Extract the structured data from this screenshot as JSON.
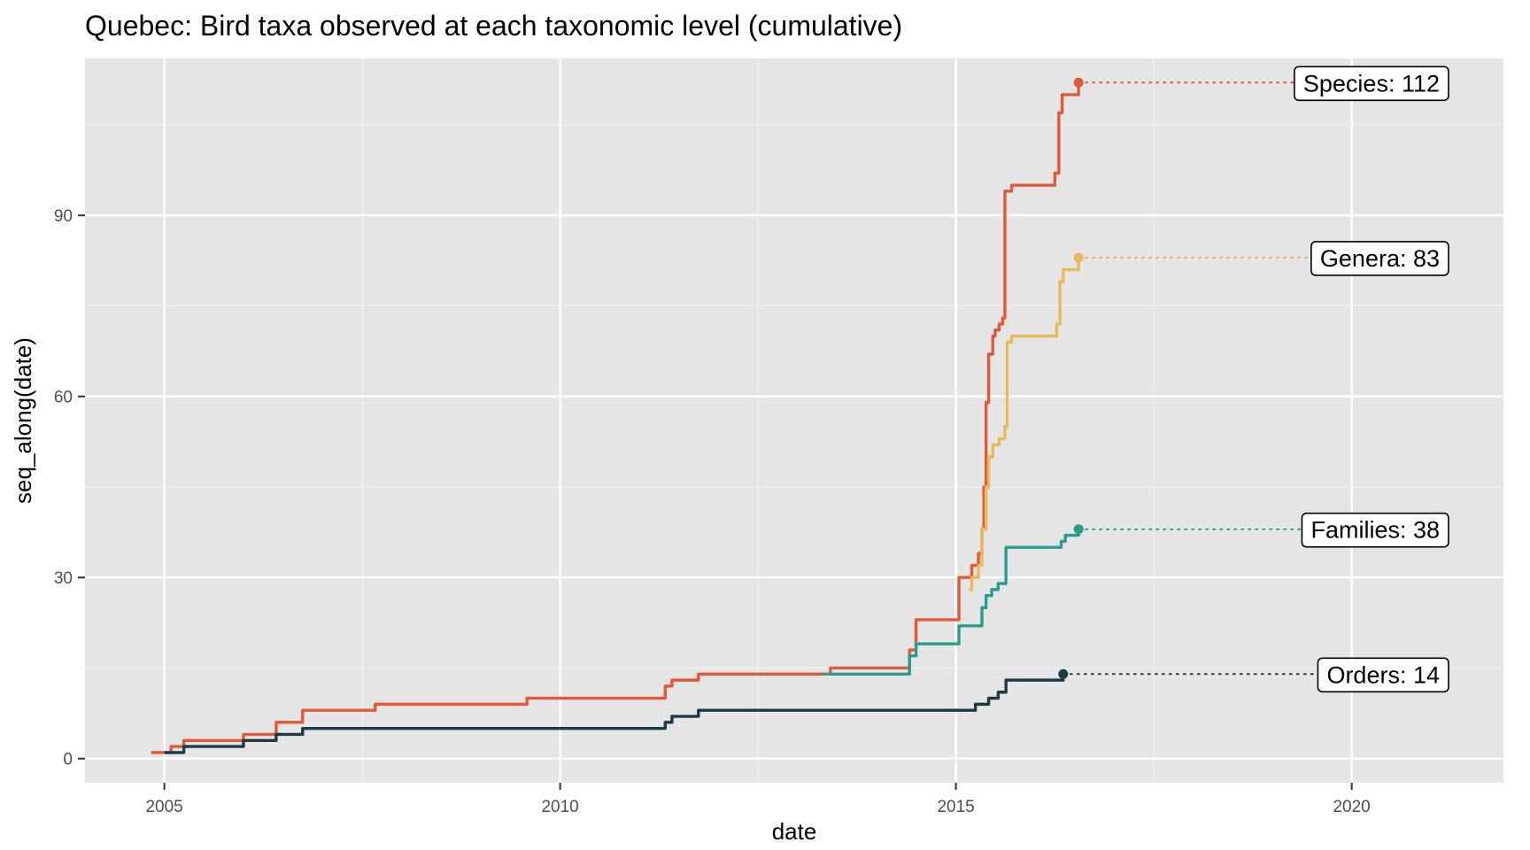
{
  "chart_data": {
    "type": "line",
    "title": "Quebec: Bird taxa observed at each taxonomic level (cumulative)",
    "xlabel": "date",
    "ylabel": "seq_along(date)",
    "x_scale": "date",
    "xlim": [
      "2004-01-01",
      "2021-12-01"
    ],
    "ylim": [
      -4,
      116
    ],
    "x_ticks": [
      "2005",
      "2010",
      "2015",
      "2020"
    ],
    "y_ticks": [
      "0",
      "30",
      "60",
      "90"
    ],
    "grid": true,
    "legend": "none",
    "panel_color": "#e5e5e5",
    "series": [
      {
        "name": "Species",
        "label": "Species: 112",
        "color": "#e05a3a",
        "points": [
          [
            "2004-11-01",
            1
          ],
          [
            "2005-02-01",
            1
          ],
          [
            "2005-02-01",
            2
          ],
          [
            "2005-04-01",
            2
          ],
          [
            "2005-04-01",
            3
          ],
          [
            "2006-01-01",
            3
          ],
          [
            "2006-01-01",
            4
          ],
          [
            "2006-06-01",
            4
          ],
          [
            "2006-06-01",
            6
          ],
          [
            "2006-10-01",
            6
          ],
          [
            "2006-10-01",
            8
          ],
          [
            "2007-09-01",
            8
          ],
          [
            "2007-09-01",
            9
          ],
          [
            "2009-08-01",
            9
          ],
          [
            "2009-08-01",
            10
          ],
          [
            "2011-05-01",
            10
          ],
          [
            "2011-05-01",
            12
          ],
          [
            "2011-06-01",
            12
          ],
          [
            "2011-06-01",
            13
          ],
          [
            "2011-10-01",
            13
          ],
          [
            "2011-10-01",
            14
          ],
          [
            "2013-06-01",
            14
          ],
          [
            "2013-06-01",
            15
          ],
          [
            "2014-06-01",
            15
          ],
          [
            "2014-06-01",
            18
          ],
          [
            "2014-07-01",
            18
          ],
          [
            "2014-07-01",
            23
          ],
          [
            "2015-01-15",
            23
          ],
          [
            "2015-01-15",
            30
          ],
          [
            "2015-03-15",
            30
          ],
          [
            "2015-03-15",
            32
          ],
          [
            "2015-04-15",
            32
          ],
          [
            "2015-04-15",
            34
          ],
          [
            "2015-05-01",
            34
          ],
          [
            "2015-05-01",
            38
          ],
          [
            "2015-05-10",
            38
          ],
          [
            "2015-05-10",
            45
          ],
          [
            "2015-05-20",
            45
          ],
          [
            "2015-05-20",
            59
          ],
          [
            "2015-06-01",
            59
          ],
          [
            "2015-06-01",
            67
          ],
          [
            "2015-06-20",
            67
          ],
          [
            "2015-06-20",
            70
          ],
          [
            "2015-07-01",
            70
          ],
          [
            "2015-07-01",
            71
          ],
          [
            "2015-07-20",
            71
          ],
          [
            "2015-07-20",
            72
          ],
          [
            "2015-08-05",
            72
          ],
          [
            "2015-08-05",
            73
          ],
          [
            "2015-08-15",
            73
          ],
          [
            "2015-08-15",
            94
          ],
          [
            "2015-09-15",
            94
          ],
          [
            "2015-09-15",
            95
          ],
          [
            "2016-04-01",
            95
          ],
          [
            "2016-04-01",
            97
          ],
          [
            "2016-04-20",
            97
          ],
          [
            "2016-04-20",
            107
          ],
          [
            "2016-05-05",
            107
          ],
          [
            "2016-05-05",
            110
          ],
          [
            "2016-07-20",
            110
          ],
          [
            "2016-07-20",
            112
          ]
        ]
      },
      {
        "name": "Genera",
        "label": "Genera: 83",
        "color": "#e8b95a",
        "points": [
          [
            "2015-03-01",
            28
          ],
          [
            "2015-03-15",
            28
          ],
          [
            "2015-03-15",
            30
          ],
          [
            "2015-04-15",
            30
          ],
          [
            "2015-04-15",
            32
          ],
          [
            "2015-05-01",
            32
          ],
          [
            "2015-05-01",
            38
          ],
          [
            "2015-05-20",
            38
          ],
          [
            "2015-05-20",
            45
          ],
          [
            "2015-06-01",
            45
          ],
          [
            "2015-06-01",
            50
          ],
          [
            "2015-06-20",
            50
          ],
          [
            "2015-06-20",
            52
          ],
          [
            "2015-07-20",
            52
          ],
          [
            "2015-07-20",
            53
          ],
          [
            "2015-08-15",
            53
          ],
          [
            "2015-08-15",
            55
          ],
          [
            "2015-08-25",
            55
          ],
          [
            "2015-08-25",
            69
          ],
          [
            "2015-09-15",
            69
          ],
          [
            "2015-09-15",
            70
          ],
          [
            "2016-04-10",
            70
          ],
          [
            "2016-04-10",
            72
          ],
          [
            "2016-04-25",
            72
          ],
          [
            "2016-04-25",
            79
          ],
          [
            "2016-05-10",
            79
          ],
          [
            "2016-05-10",
            81
          ],
          [
            "2016-07-20",
            81
          ],
          [
            "2016-07-20",
            83
          ]
        ]
      },
      {
        "name": "Families",
        "label": "Families: 38",
        "color": "#2a9d8f",
        "points": [
          [
            "2013-05-01",
            14
          ],
          [
            "2014-06-01",
            14
          ],
          [
            "2014-06-01",
            17
          ],
          [
            "2014-07-01",
            17
          ],
          [
            "2014-07-01",
            19
          ],
          [
            "2015-01-15",
            19
          ],
          [
            "2015-01-15",
            22
          ],
          [
            "2015-05-01",
            22
          ],
          [
            "2015-05-01",
            25
          ],
          [
            "2015-05-20",
            25
          ],
          [
            "2015-05-20",
            27
          ],
          [
            "2015-06-15",
            27
          ],
          [
            "2015-06-15",
            28
          ],
          [
            "2015-07-15",
            28
          ],
          [
            "2015-07-15",
            29
          ],
          [
            "2015-08-20",
            29
          ],
          [
            "2015-08-20",
            35
          ],
          [
            "2016-05-01",
            35
          ],
          [
            "2016-05-01",
            36
          ],
          [
            "2016-05-20",
            36
          ],
          [
            "2016-05-20",
            37
          ],
          [
            "2016-07-20",
            37
          ],
          [
            "2016-07-20",
            38
          ]
        ]
      },
      {
        "name": "Orders",
        "label": "Orders: 14",
        "color": "#1d3a47",
        "points": [
          [
            "2005-01-01",
            1
          ],
          [
            "2005-04-01",
            1
          ],
          [
            "2005-04-01",
            2
          ],
          [
            "2006-01-01",
            2
          ],
          [
            "2006-01-01",
            3
          ],
          [
            "2006-06-01",
            3
          ],
          [
            "2006-06-01",
            4
          ],
          [
            "2006-10-01",
            4
          ],
          [
            "2006-10-01",
            5
          ],
          [
            "2011-05-01",
            5
          ],
          [
            "2011-05-01",
            6
          ],
          [
            "2011-06-01",
            6
          ],
          [
            "2011-06-01",
            7
          ],
          [
            "2011-10-01",
            7
          ],
          [
            "2011-10-01",
            8
          ],
          [
            "2015-04-01",
            8
          ],
          [
            "2015-04-01",
            9
          ],
          [
            "2015-06-01",
            9
          ],
          [
            "2015-06-01",
            10
          ],
          [
            "2015-07-15",
            10
          ],
          [
            "2015-07-15",
            11
          ],
          [
            "2015-08-20",
            11
          ],
          [
            "2015-08-20",
            13
          ],
          [
            "2016-05-10",
            13
          ],
          [
            "2016-05-10",
            14
          ]
        ]
      }
    ]
  }
}
